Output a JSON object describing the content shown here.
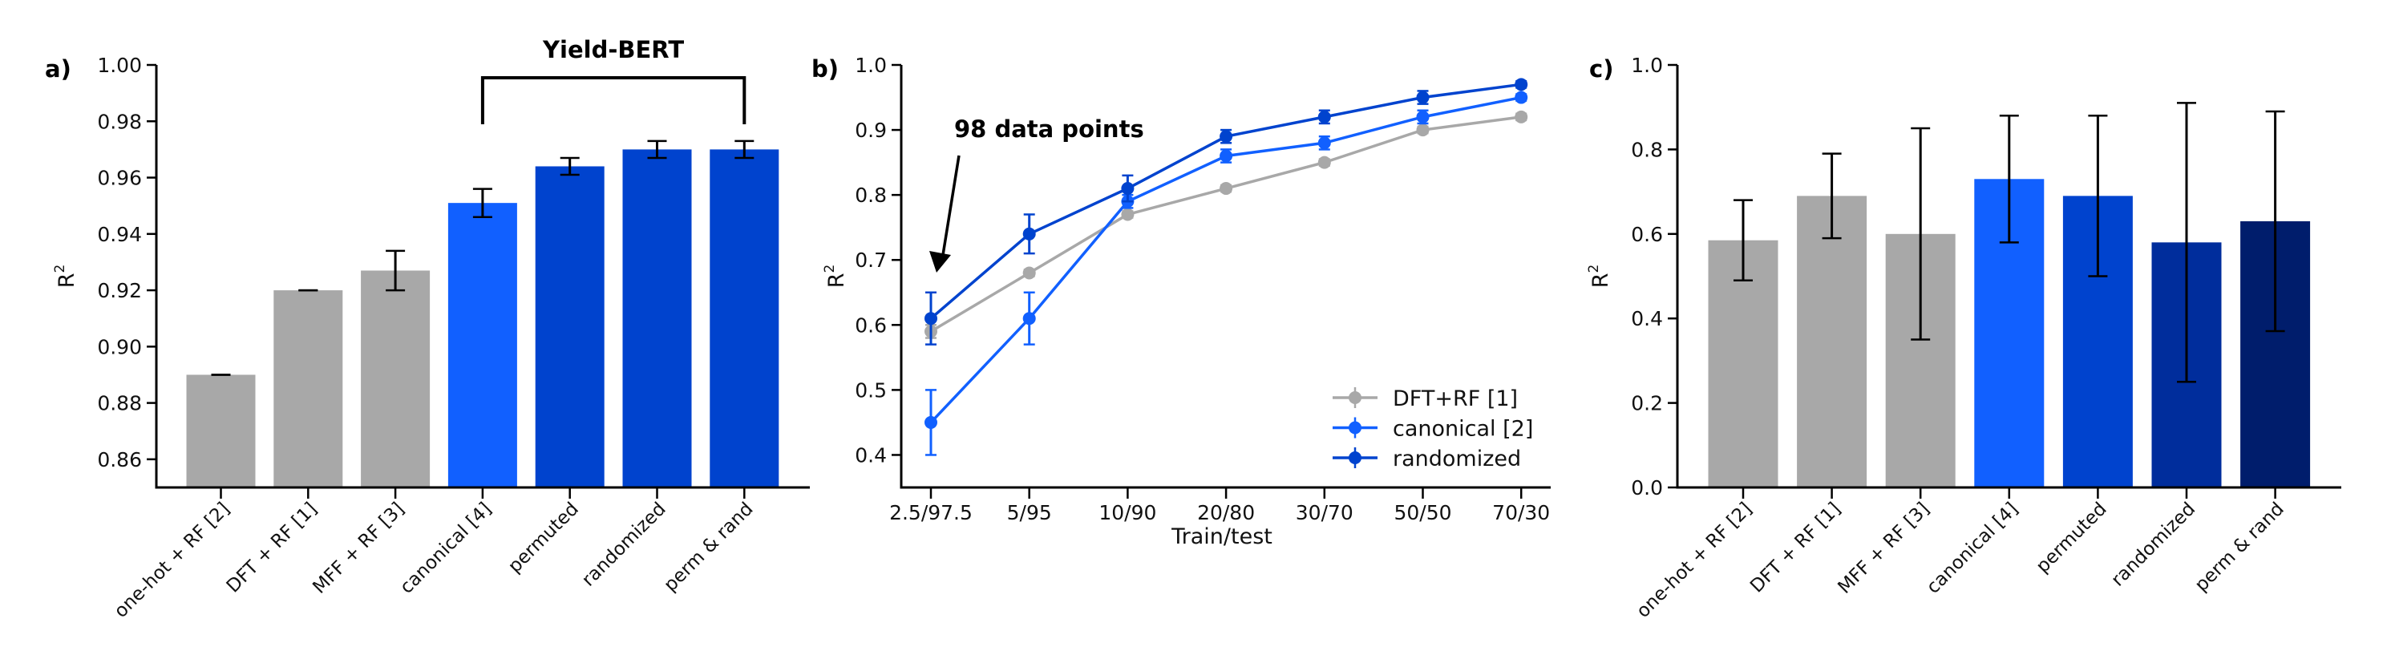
{
  "chart_data": [
    {
      "panel_label": "a)",
      "type": "bar",
      "categories": [
        "one-hot + RF [2]",
        "DFT + RF [1]",
        "MFF + RF [3]",
        "canonical [4]",
        "permuted",
        "randomized",
        "perm & rand"
      ],
      "values": [
        0.89,
        0.92,
        0.927,
        0.951,
        0.964,
        0.97,
        0.97
      ],
      "errors": [
        0.0,
        0.0,
        0.007,
        0.005,
        0.003,
        0.003,
        0.003
      ],
      "colors": [
        "#a8a8a8",
        "#a8a8a8",
        "#a8a8a8",
        "#1160ff",
        "#0043ce",
        "#0043ce",
        "#0043ce"
      ],
      "ylabel": "R",
      "ylabel_sup": "2",
      "ylim": [
        0.85,
        1.0
      ],
      "yticks": [
        "0.86",
        "0.88",
        "0.90",
        "0.92",
        "0.94",
        "0.96",
        "0.98",
        "1.00"
      ],
      "annotation": {
        "text": "Yield-BERT",
        "from_category": "canonical [4]",
        "to_category": "perm & rand"
      },
      "grid": false
    },
    {
      "panel_label": "b)",
      "type": "line",
      "x": [
        "2.5/97.5",
        "5/95",
        "10/90",
        "20/80",
        "30/70",
        "50/50",
        "70/30"
      ],
      "xlabel": "Train/test",
      "ylabel": "R",
      "ylabel_sup": "2",
      "ylim": [
        0.35,
        1.0
      ],
      "yticks": [
        "0.4",
        "0.5",
        "0.6",
        "0.7",
        "0.8",
        "0.9",
        "1.0"
      ],
      "series": [
        {
          "name": "DFT+RF [1]",
          "color": "#a8a8a8",
          "values": [
            0.59,
            0.68,
            0.77,
            0.81,
            0.85,
            0.9,
            0.92
          ],
          "errors": [
            0.01,
            0.005,
            0.005,
            0.005,
            0.005,
            0.005,
            0.005
          ]
        },
        {
          "name": "canonical [2]",
          "color": "#1160ff",
          "values": [
            0.45,
            0.61,
            0.79,
            0.86,
            0.88,
            0.92,
            0.95
          ],
          "errors": [
            0.05,
            0.04,
            0.01,
            0.01,
            0.01,
            0.01,
            0.005
          ]
        },
        {
          "name": "randomized",
          "color": "#0043ce",
          "values": [
            0.61,
            0.74,
            0.81,
            0.89,
            0.92,
            0.95,
            0.97
          ],
          "errors": [
            0.04,
            0.03,
            0.02,
            0.01,
            0.01,
            0.01,
            0.005
          ]
        }
      ],
      "annotation": {
        "text": "98 data points",
        "points_to": "2.5/97.5"
      },
      "legend": "bottom-right",
      "grid": false
    },
    {
      "panel_label": "c)",
      "type": "bar",
      "categories": [
        "one-hot + RF [2]",
        "DFT + RF [1]",
        "MFF + RF [3]",
        "canonical [4]",
        "permuted",
        "randomized",
        "perm & rand"
      ],
      "values": [
        0.585,
        0.69,
        0.6,
        0.73,
        0.69,
        0.58,
        0.63
      ],
      "error_low": [
        0.49,
        0.59,
        0.35,
        0.58,
        0.5,
        0.25,
        0.37
      ],
      "error_high": [
        0.68,
        0.79,
        0.85,
        0.88,
        0.88,
        0.91,
        0.89
      ],
      "colors": [
        "#a8a8a8",
        "#a8a8a8",
        "#a8a8a8",
        "#1160ff",
        "#0043ce",
        "#002d9c",
        "#001d6c"
      ],
      "ylabel": "R",
      "ylabel_sup": "2",
      "ylim": [
        0.0,
        1.0
      ],
      "yticks": [
        "0.0",
        "0.2",
        "0.4",
        "0.6",
        "0.8",
        "1.0"
      ],
      "grid": false
    }
  ]
}
